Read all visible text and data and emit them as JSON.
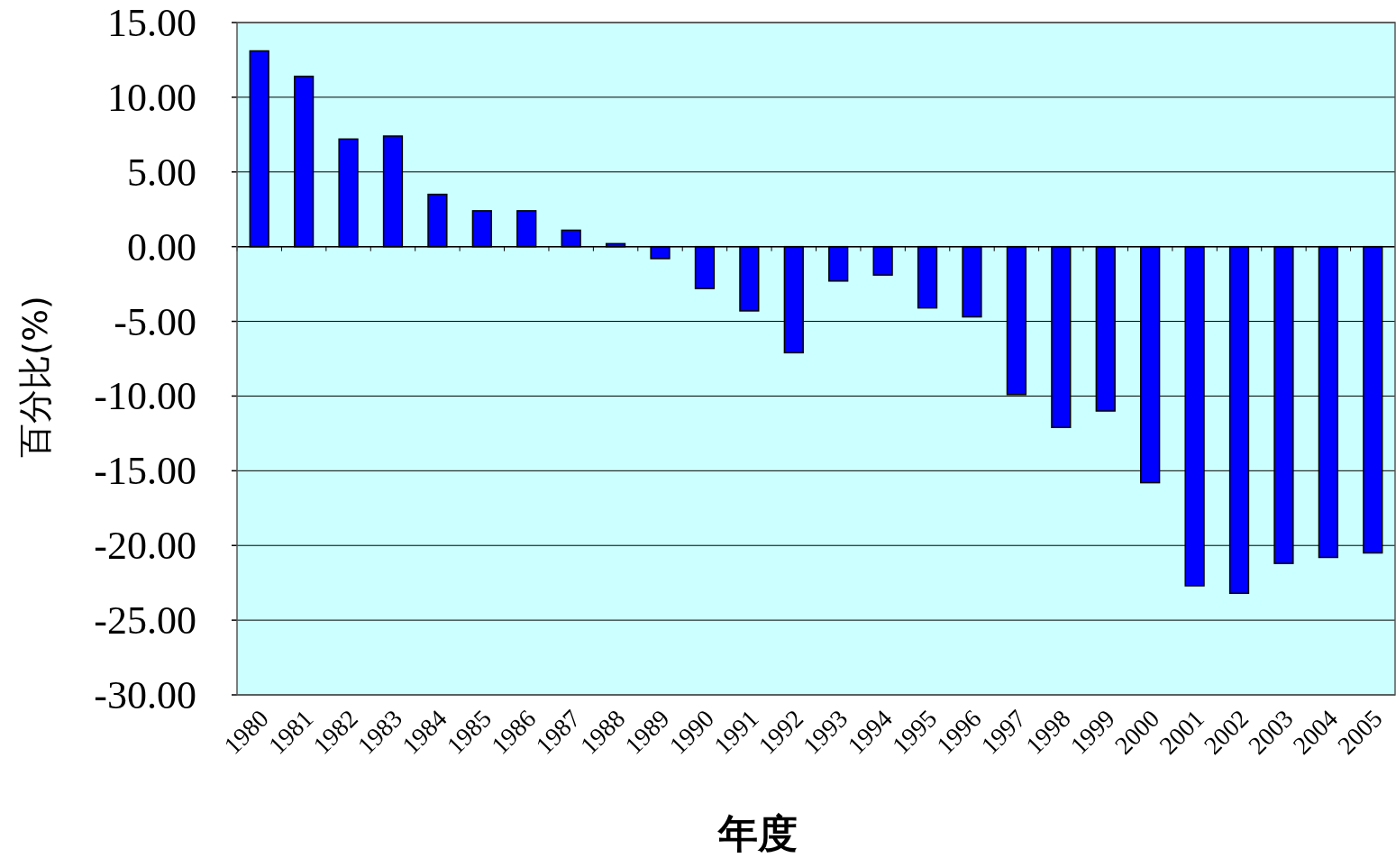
{
  "chart_data": {
    "type": "bar",
    "xlabel": "年度",
    "ylabel": "百分比(%)",
    "categories": [
      "1980",
      "1981",
      "1982",
      "1983",
      "1984",
      "1985",
      "1986",
      "1987",
      "1988",
      "1989",
      "1990",
      "1991",
      "1992",
      "1993",
      "1994",
      "1995",
      "1996",
      "1997",
      "1998",
      "1999",
      "2000",
      "2001",
      "2002",
      "2003",
      "2004",
      "2005"
    ],
    "values": [
      13.1,
      11.4,
      7.2,
      7.4,
      3.5,
      2.4,
      2.4,
      1.1,
      0.2,
      -0.8,
      -2.8,
      -4.3,
      -7.1,
      -2.3,
      -1.9,
      -4.1,
      -4.7,
      -9.9,
      -12.1,
      -11.0,
      -15.8,
      -22.7,
      -23.2,
      -21.2,
      -20.8,
      -20.5
    ],
    "color": "#0000ff",
    "ylim": [
      -30,
      15
    ],
    "yticks": [
      {
        "value": 15,
        "label": "15.00"
      },
      {
        "value": 10,
        "label": "10.00"
      },
      {
        "value": 5,
        "label": "5.00"
      },
      {
        "value": 0,
        "label": "0.00"
      },
      {
        "value": -5,
        "label": "-5.00"
      },
      {
        "value": -10,
        "label": "-10.00"
      },
      {
        "value": -15,
        "label": "-15.00"
      },
      {
        "value": -20,
        "label": "-20.00"
      },
      {
        "value": -25,
        "label": "-25.00"
      },
      {
        "value": -30,
        "label": "-30.00"
      }
    ],
    "grid": "y"
  }
}
